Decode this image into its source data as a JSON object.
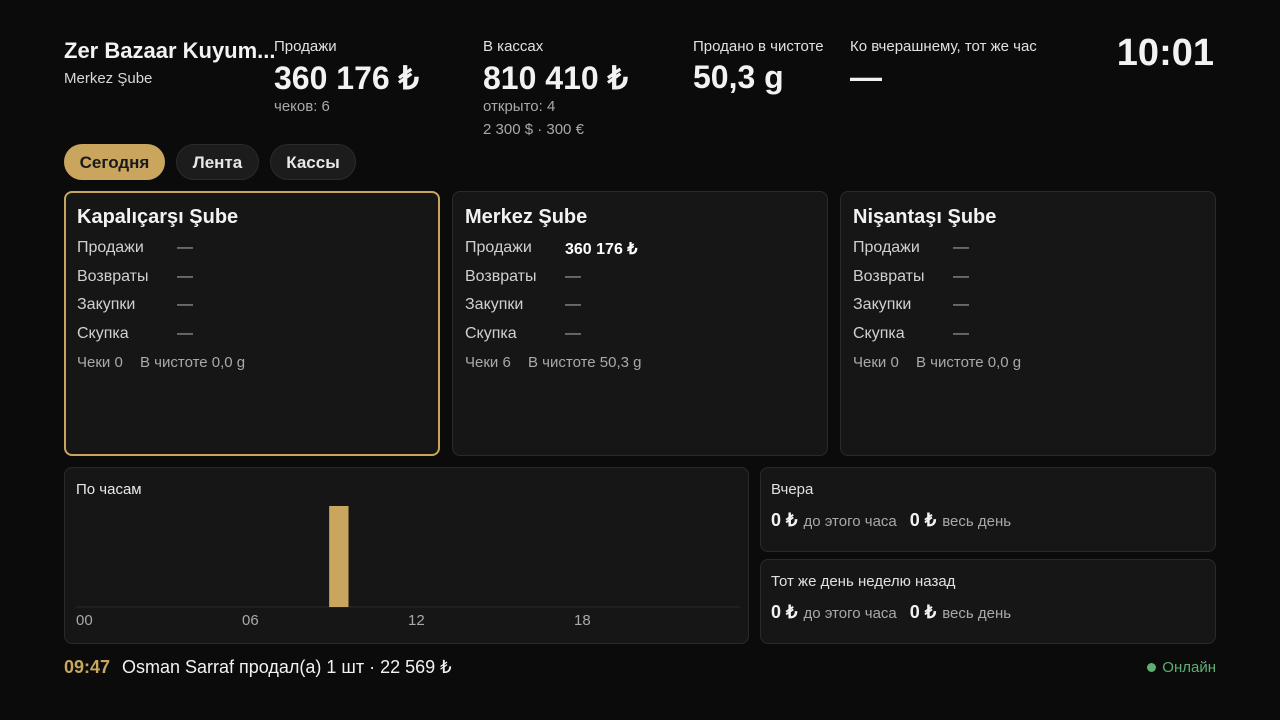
{
  "header": {
    "store_name": "Zer Bazaar Kuyum...",
    "branch": "Merkez Şube",
    "clock": "10:01"
  },
  "stats": [
    {
      "label": "Продажи",
      "value": "360 176 ₺",
      "notes": [
        "чеков: 6"
      ]
    },
    {
      "label": "В кассах",
      "value": "810 410 ₺",
      "notes": [
        "открыто: 4",
        "2 300 $ · 300 €"
      ]
    },
    {
      "label": "Продано в чистоте",
      "value": "50,3 g",
      "notes": []
    },
    {
      "label": "Ко вчерашнему, тот же час",
      "value": "—",
      "notes": []
    }
  ],
  "tabs": {
    "items": [
      "Сегодня",
      "Лента",
      "Кассы"
    ],
    "active": 0
  },
  "branches": [
    {
      "name": "Kapalıçarşı Şube",
      "selected": true,
      "rows": [
        {
          "label": "Продажи",
          "value": "—"
        },
        {
          "label": "Возвраты",
          "value": "—"
        },
        {
          "label": "Закупки",
          "value": "—"
        },
        {
          "label": "Скупка",
          "value": "—"
        }
      ],
      "checks": "Чеки 0",
      "net": "В чистоте 0,0 g"
    },
    {
      "name": "Merkez Şube",
      "selected": false,
      "rows": [
        {
          "label": "Продажи",
          "value": "360 176 ₺"
        },
        {
          "label": "Возвраты",
          "value": "—"
        },
        {
          "label": "Закупки",
          "value": "—"
        },
        {
          "label": "Скупка",
          "value": "—"
        }
      ],
      "checks": "Чеки 6",
      "net": "В чистоте 50,3 g"
    },
    {
      "name": "Nişantaşı Şube",
      "selected": false,
      "rows": [
        {
          "label": "Продажи",
          "value": "—"
        },
        {
          "label": "Возвраты",
          "value": "—"
        },
        {
          "label": "Закупки",
          "value": "—"
        },
        {
          "label": "Скупка",
          "value": "—"
        }
      ],
      "checks": "Чеки 0",
      "net": "В чистоте 0,0 g"
    }
  ],
  "chart_data": {
    "type": "bar",
    "title": "По часам",
    "color": "#c9a55e",
    "categories": [
      "00",
      null,
      null,
      null,
      null,
      null,
      "06",
      null,
      null,
      null,
      null,
      null,
      "12",
      null,
      null,
      null,
      null,
      null,
      "18",
      null,
      null,
      null,
      null,
      null
    ],
    "values": [
      0,
      0,
      0,
      0,
      0,
      0,
      0,
      0,
      0,
      360176,
      0,
      0,
      0,
      0,
      0,
      0,
      0,
      0,
      0,
      0,
      0,
      0,
      0,
      0
    ]
  },
  "comparisons": [
    {
      "title": "Вчера",
      "items": [
        {
          "value": "0 ₺",
          "label": "до этого часа"
        },
        {
          "value": "0 ₺",
          "label": "весь день"
        }
      ]
    },
    {
      "title": "Тот же день неделю назад",
      "items": [
        {
          "value": "0 ₺",
          "label": "до этого часа"
        },
        {
          "value": "0 ₺",
          "label": "весь день"
        }
      ]
    }
  ],
  "footer": {
    "time": "09:47",
    "event": "Osman Sarraf продал(а) 1 шт · 22 569 ₺",
    "status": "Онлайн"
  }
}
